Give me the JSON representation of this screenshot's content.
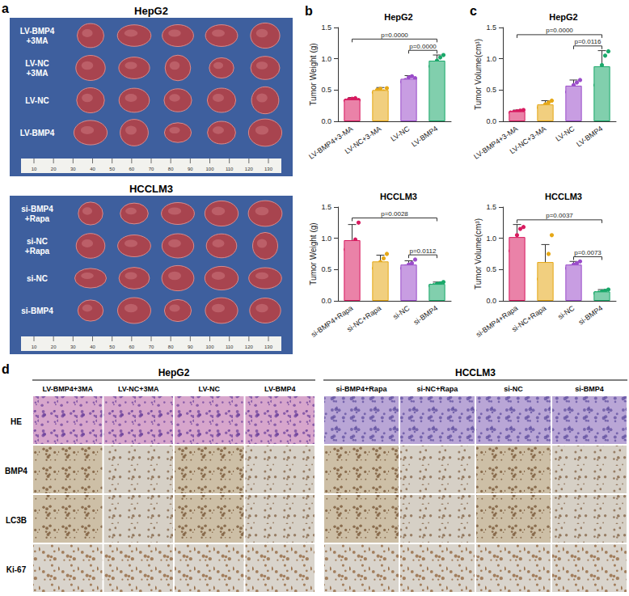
{
  "figure": {
    "panel_labels": [
      "a",
      "b",
      "c",
      "d"
    ],
    "photos": [
      {
        "title": "HepG2",
        "rows": [
          [
            "LV-BMP4",
            "+3MA"
          ],
          [
            "LV-NC",
            "+3MA"
          ],
          [
            "LV-NC"
          ],
          [
            "LV-BMP4"
          ]
        ]
      },
      {
        "title": "HCCLM3",
        "rows": [
          [
            "si-BMP4",
            "+Rapa"
          ],
          [
            "si-NC",
            "+Rapa"
          ],
          [
            "si-NC"
          ],
          [
            "si-BMP4"
          ]
        ]
      }
    ],
    "ruler": [
      "10",
      "20",
      "30",
      "40",
      "50",
      "60",
      "70",
      "80",
      "90",
      "100",
      "110",
      "120",
      "130"
    ],
    "ihc": {
      "rows": [
        "HE",
        "BMP4",
        "LC3B",
        "Ki-67"
      ],
      "groups": [
        {
          "title": "HepG2",
          "columns": [
            "LV-BMP4+3MA",
            "LV-NC+3MA",
            "LV-NC",
            "LV-BMP4"
          ]
        },
        {
          "title": "HCCLM3",
          "columns": [
            "si-BMP4+Rapa",
            "si-NC+Rapa",
            "si-NC",
            "si-BMP4"
          ]
        }
      ]
    }
  },
  "chart_data": [
    {
      "type": "bar",
      "title": "HepG2",
      "y_label": "Tumor Weight (g)",
      "categories": [
        "LV-BMP4+3-MA",
        "LV-NC+3-MA",
        "LV-NC",
        "LV-BMP4"
      ],
      "values": [
        0.35,
        0.5,
        0.68,
        0.97
      ],
      "error": [
        0.03,
        0.04,
        0.05,
        0.09
      ],
      "points": [
        [
          0.33,
          0.35,
          0.36,
          0.37,
          0.34
        ],
        [
          0.46,
          0.5,
          0.52,
          0.48,
          0.53
        ],
        [
          0.63,
          0.66,
          0.7,
          0.72,
          0.69
        ],
        [
          0.88,
          0.93,
          0.97,
          1.02,
          1.06
        ]
      ],
      "colors": [
        "#d81b60",
        "#e6a817",
        "#9b4dca",
        "#1aa86a"
      ],
      "ylim": [
        0,
        1.5
      ],
      "yticks": [
        {
          "value": 0,
          "label": "0.0"
        },
        {
          "value": 0.5,
          "label": "0.5"
        },
        {
          "value": 1,
          "label": "1.0"
        },
        {
          "value": 1.5,
          "label": "1.5"
        }
      ],
      "annotations": [
        {
          "from": "LV-NC",
          "to": "LV-BMP4",
          "text": "p=0.0000"
        },
        {
          "from": "LV-BMP4+3-MA",
          "to": "LV-BMP4",
          "text": "p=0.0000"
        }
      ]
    },
    {
      "type": "bar",
      "title": "HepG2",
      "y_label": "Tumor Volume(cm³)",
      "categories": [
        "LV-BMP4+3-MA",
        "LV-NC+3-MA",
        "LV-NC",
        "LV-BMP4"
      ],
      "values": [
        0.16,
        0.27,
        0.57,
        0.88
      ],
      "error": [
        0.02,
        0.06,
        0.09,
        0.25
      ],
      "points": [
        [
          0.14,
          0.15,
          0.16,
          0.17,
          0.18
        ],
        [
          0.22,
          0.24,
          0.27,
          0.3,
          0.33
        ],
        [
          0.47,
          0.52,
          0.58,
          0.62,
          0.66
        ],
        [
          0.58,
          0.74,
          0.9,
          1.05,
          1.12
        ]
      ],
      "colors": [
        "#d81b60",
        "#e6a817",
        "#9b4dca",
        "#1aa86a"
      ],
      "ylim": [
        0,
        1.5
      ],
      "yticks": [
        {
          "value": 0,
          "label": "0.0"
        },
        {
          "value": 0.5,
          "label": "0.5"
        },
        {
          "value": 1,
          "label": "1.0"
        },
        {
          "value": 1.5,
          "label": "1.5"
        }
      ],
      "annotations": [
        {
          "from": "LV-NC",
          "to": "LV-BMP4",
          "text": "p=0.0116"
        },
        {
          "from": "LV-BMP4+3-MA",
          "to": "LV-BMP4",
          "text": "p=0.0000"
        }
      ]
    },
    {
      "type": "bar",
      "title": "HCCLM3",
      "y_label": "Tumor Weight (g)",
      "categories": [
        "si-BMP4+Rapa",
        "si-NC+Rapa",
        "si-NC",
        "si-BMP4"
      ],
      "values": [
        0.97,
        0.63,
        0.58,
        0.27
      ],
      "error": [
        0.25,
        0.1,
        0.06,
        0.03
      ],
      "points": [
        [
          0.82,
          0.85,
          0.88,
          0.98,
          1.25
        ],
        [
          0.52,
          0.57,
          0.62,
          0.68,
          0.75
        ],
        [
          0.52,
          0.55,
          0.58,
          0.6,
          0.66
        ],
        [
          0.24,
          0.25,
          0.27,
          0.28,
          0.3
        ]
      ],
      "colors": [
        "#d81b60",
        "#e6a817",
        "#9b4dca",
        "#1aa86a"
      ],
      "ylim": [
        0,
        1.5
      ],
      "yticks": [
        {
          "value": 0,
          "label": "0.0"
        },
        {
          "value": 0.5,
          "label": "0.5"
        },
        {
          "value": 1,
          "label": "1.0"
        },
        {
          "value": 1.5,
          "label": "1.5"
        }
      ],
      "annotations": [
        {
          "from": "si-NC",
          "to": "si-BMP4",
          "text": "p=0.0112"
        },
        {
          "from": "si-BMP4+Rapa",
          "to": "si-BMP4",
          "text": "p=0.0028"
        }
      ]
    },
    {
      "type": "bar",
      "title": "HCCLM3",
      "y_label": "Tumor Volume(cm³)",
      "categories": [
        "si-BMP4+Rapa",
        "si-NC+Rapa",
        "si-NC",
        "si-BMP4"
      ],
      "values": [
        1.02,
        0.62,
        0.58,
        0.15
      ],
      "error": [
        0.2,
        0.28,
        0.05,
        0.03
      ],
      "points": [
        [
          0.8,
          0.95,
          1.05,
          1.15,
          1.18
        ],
        [
          0.35,
          0.42,
          0.53,
          0.75,
          1.05
        ],
        [
          0.52,
          0.55,
          0.58,
          0.6,
          0.63
        ],
        [
          0.12,
          0.13,
          0.15,
          0.16,
          0.18
        ]
      ],
      "colors": [
        "#d81b60",
        "#e6a817",
        "#9b4dca",
        "#1aa86a"
      ],
      "ylim": [
        0,
        1.5
      ],
      "yticks": [
        {
          "value": 0,
          "label": "0.0"
        },
        {
          "value": 0.5,
          "label": "0.5"
        },
        {
          "value": 1,
          "label": "1.0"
        },
        {
          "value": 1.5,
          "label": "1.5"
        }
      ],
      "annotations": [
        {
          "from": "si-NC",
          "to": "si-BMP4",
          "text": "p=0.0073"
        },
        {
          "from": "si-BMP4+Rapa",
          "to": "si-BMP4",
          "text": "p=0.0037"
        }
      ]
    }
  ]
}
